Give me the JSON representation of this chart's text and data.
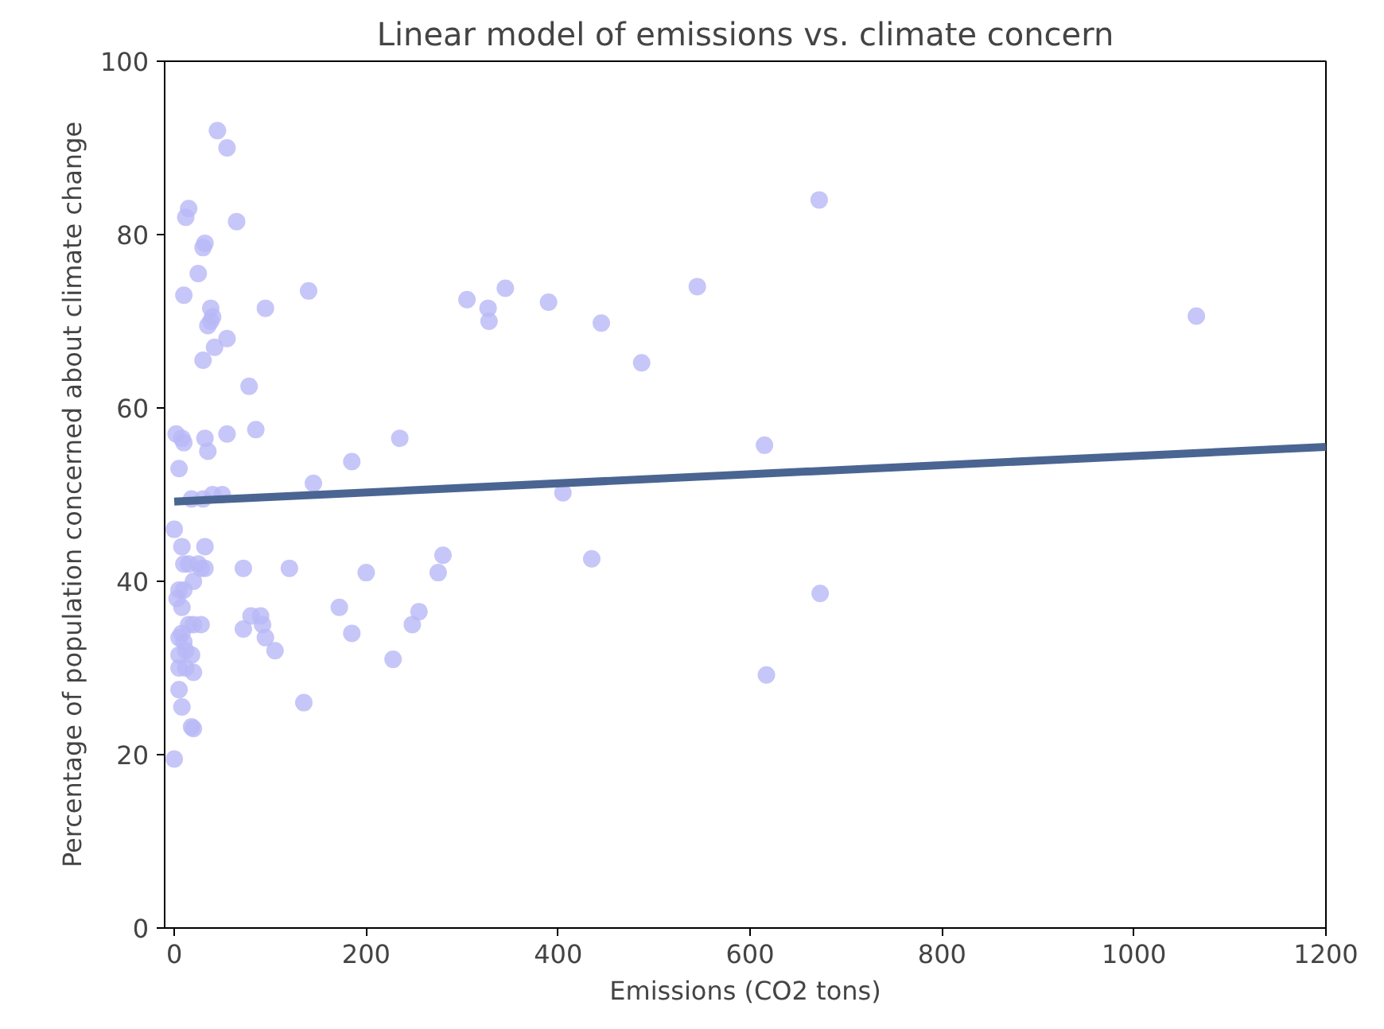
{
  "chart_data": {
    "type": "scatter",
    "title": "Linear model of emissions vs. climate concern",
    "xlabel": "Emissions (CO2 tons)",
    "ylabel": "Percentage of population concerned about climate change",
    "xlim": [
      -10,
      1200
    ],
    "ylim": [
      0,
      100
    ],
    "xticks": [
      0,
      200,
      400,
      600,
      800,
      1000,
      1200
    ],
    "yticks": [
      0,
      20,
      40,
      60,
      80,
      100
    ],
    "grid": false,
    "series": [
      {
        "marker": "circle",
        "color": "#b8b8f6",
        "x": [
          45,
          55,
          15,
          12,
          65,
          32,
          30,
          25,
          10,
          38,
          40,
          38,
          35,
          55,
          42,
          30,
          2,
          8,
          10,
          32,
          55,
          35,
          5,
          50,
          40,
          18,
          30,
          0,
          8,
          32,
          10,
          25,
          28,
          32,
          15,
          20,
          5,
          10,
          3,
          8,
          28,
          15,
          20,
          8,
          5,
          10,
          12,
          5,
          18,
          5,
          12,
          20,
          5,
          8,
          18,
          20,
          0,
          72,
          72,
          80,
          90,
          92,
          95,
          105,
          85,
          78,
          95,
          140,
          145,
          135,
          120,
          172,
          185,
          185,
          200,
          228,
          235,
          248,
          255,
          275,
          280,
          305,
          327,
          328,
          345,
          390,
          405,
          435,
          445,
          487,
          545,
          615,
          617,
          672,
          673,
          1065
        ],
        "values": [
          92,
          90,
          83,
          82,
          81.5,
          79,
          78.5,
          75.5,
          73,
          71.5,
          70.5,
          70,
          69.5,
          68,
          67,
          65.5,
          57,
          56.5,
          56,
          56.5,
          57,
          55,
          53,
          50,
          50,
          49.5,
          49.5,
          46,
          44,
          44,
          42,
          42,
          41.5,
          41.5,
          42,
          40,
          39,
          39,
          38,
          37,
          35,
          35,
          35,
          34,
          33.5,
          33,
          32,
          31.5,
          31.5,
          30,
          30,
          29.5,
          27.5,
          25.5,
          23.2,
          23,
          19.5,
          41.5,
          34.5,
          36,
          36,
          35,
          33.5,
          32,
          57.5,
          62.5,
          71.5,
          73.5,
          51.3,
          26,
          41.5,
          37,
          34,
          53.8,
          41,
          31,
          56.5,
          35,
          36.5,
          41,
          43,
          72.5,
          71.5,
          70,
          73.8,
          72.2,
          50.2,
          42.6,
          69.8,
          65.2,
          74,
          55.7,
          29.2,
          84,
          38.6,
          70.6
        ]
      },
      {
        "type": "line",
        "color": "#4a6591",
        "x": [
          0,
          1200
        ],
        "values": [
          49.2,
          55.5
        ]
      }
    ]
  }
}
